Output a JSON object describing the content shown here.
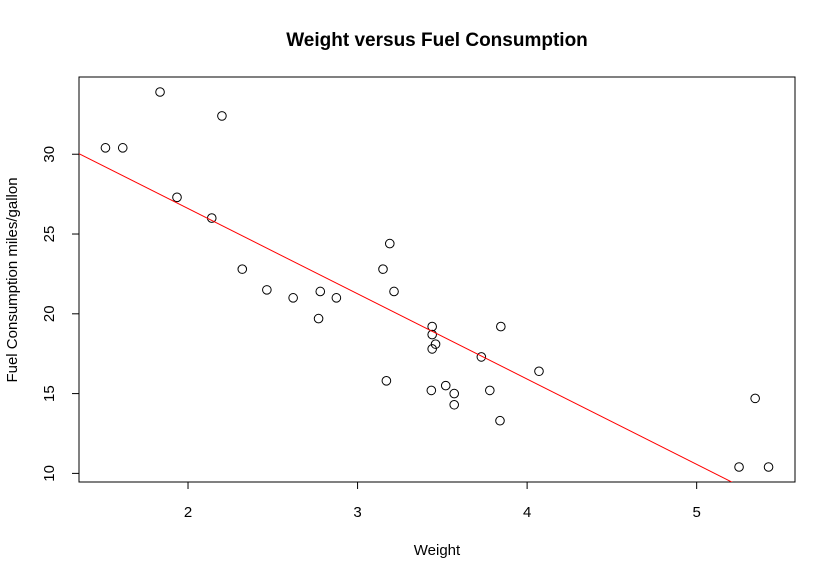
{
  "chart_data": {
    "type": "scatter",
    "title": "Weight versus Fuel Consumption",
    "x_label": "Weight",
    "y_label": "Fuel Consumption miles/gallon",
    "x": [
      2.62,
      2.875,
      2.32,
      3.215,
      3.44,
      3.46,
      3.57,
      3.19,
      3.15,
      3.44,
      3.44,
      4.07,
      3.73,
      3.78,
      5.25,
      5.424,
      5.345,
      2.2,
      1.615,
      1.835,
      2.465,
      3.52,
      3.435,
      3.84,
      3.845,
      1.935,
      2.14,
      1.513,
      3.17,
      2.77,
      3.57,
      2.78
    ],
    "y": [
      21.0,
      21.0,
      22.8,
      21.4,
      18.7,
      18.1,
      14.3,
      24.4,
      22.8,
      19.2,
      17.8,
      16.4,
      17.3,
      15.2,
      10.4,
      10.4,
      14.7,
      32.4,
      30.4,
      33.9,
      21.5,
      15.5,
      15.2,
      13.3,
      19.2,
      27.3,
      26.0,
      30.4,
      15.8,
      19.7,
      15.0,
      21.4
    ],
    "color": "#000000",
    "regression": {
      "intercept": 37.285,
      "slope": -5.344,
      "color": "#ff0000"
    },
    "xlim": [
      1.357,
      5.58
    ],
    "ylim": [
      9.46,
      34.84
    ],
    "xticks": [
      2,
      3,
      4,
      5
    ],
    "yticks": [
      10,
      15,
      20,
      25,
      30
    ]
  }
}
